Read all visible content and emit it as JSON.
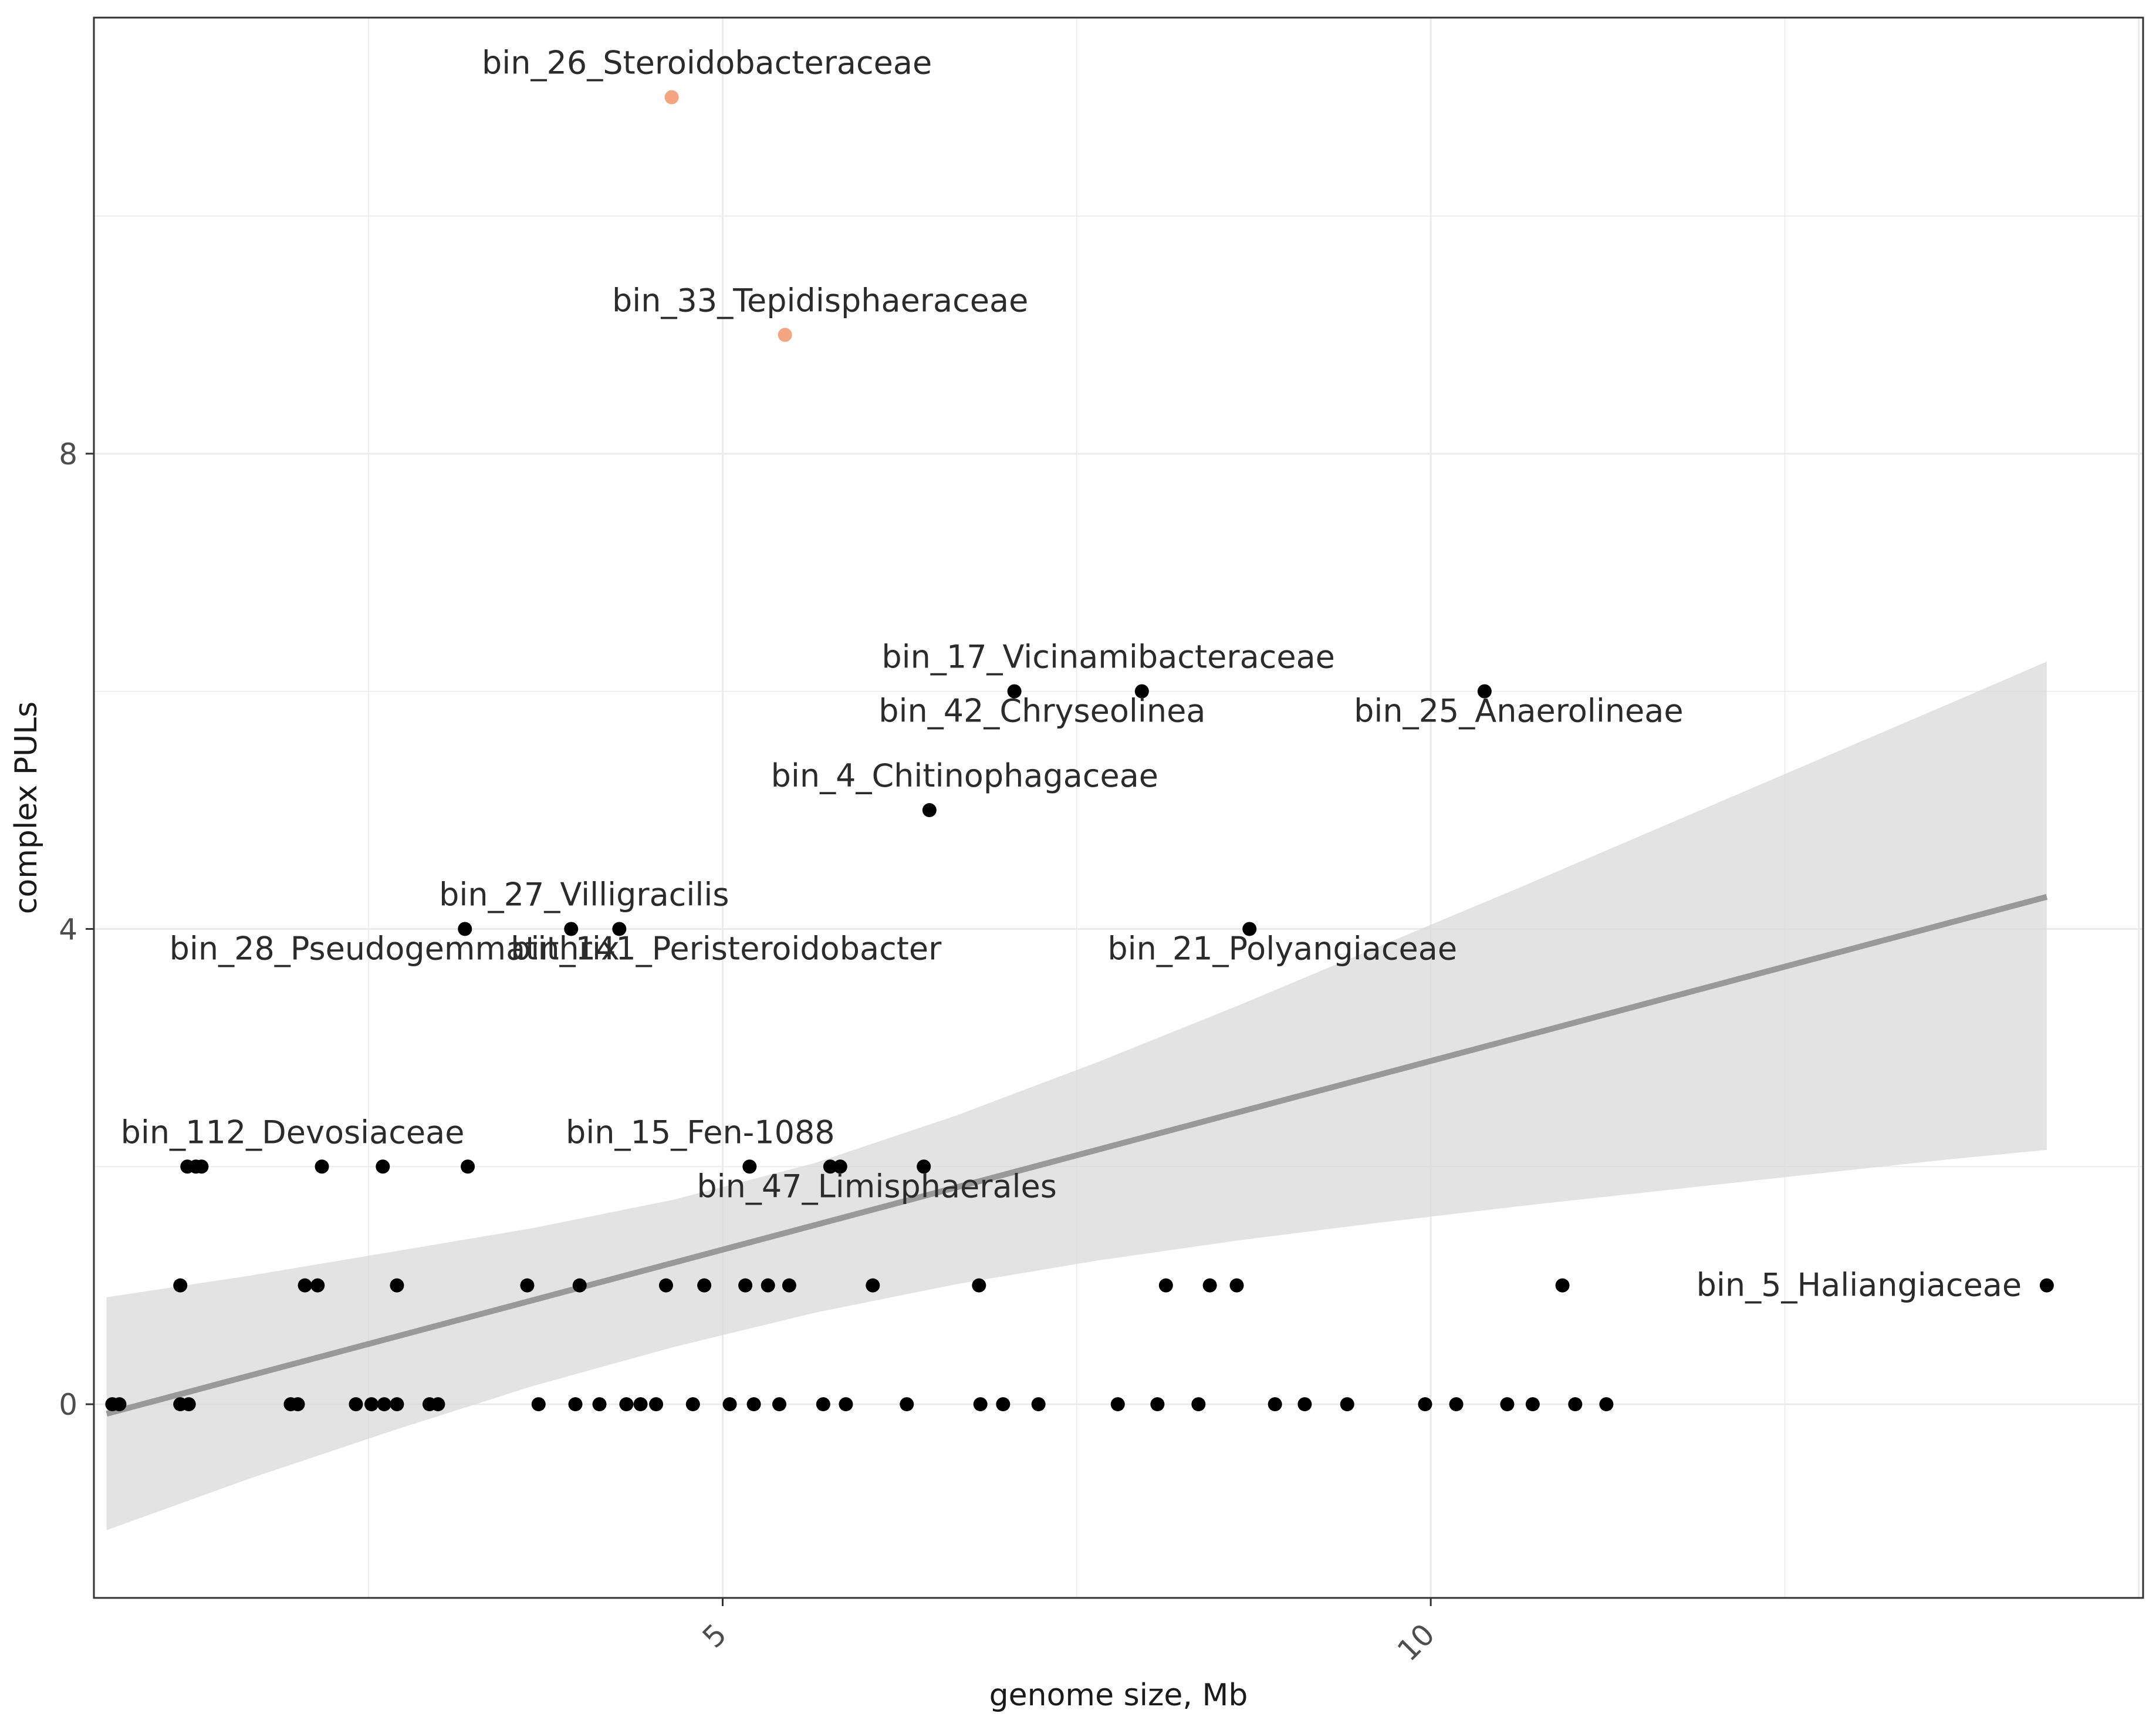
{
  "chart_data": {
    "type": "scatter",
    "title": "",
    "xlabel": "genome size, Mb",
    "ylabel": "complex PULs",
    "xlim": [
      0.56,
      15.03
    ],
    "ylim": [
      -1.63,
      11.67
    ],
    "x_ticks": [
      5,
      10
    ],
    "y_ticks": [
      0,
      4,
      8
    ],
    "grid": true,
    "legend": "none",
    "colors": {
      "point": "#000000",
      "highlight": "#F4A582",
      "fit_line": "#999999",
      "ribbon": "#d9d9d9",
      "grid": "#ebebeb",
      "border": "#333333"
    },
    "fit": {
      "x": [
        0.65,
        14.35
      ],
      "y": [
        -0.08,
        4.27
      ],
      "ribbon_x": [
        0.65,
        1.65,
        2.65,
        3.65,
        4.65,
        5.65,
        6.65,
        7.65,
        8.65,
        9.65,
        10.65,
        11.65,
        12.65,
        13.65,
        14.35
      ],
      "ribbon_lower": [
        -1.06,
        -0.63,
        -0.23,
        0.15,
        0.48,
        0.77,
        1.01,
        1.21,
        1.38,
        1.53,
        1.67,
        1.8,
        1.93,
        2.06,
        2.14
      ],
      "ribbon_upper": [
        0.9,
        1.08,
        1.28,
        1.48,
        1.72,
        2.03,
        2.43,
        2.88,
        3.36,
        3.86,
        4.36,
        4.87,
        5.38,
        5.89,
        6.25
      ]
    },
    "points": [
      {
        "x": 4.64,
        "y": 11.0,
        "label": "bin_26_Steroidobacteraceae",
        "highlight": true
      },
      {
        "x": 5.44,
        "y": 9.0,
        "label": "bin_33_Tepidisphaeraceae",
        "highlight": true
      },
      {
        "x": 7.06,
        "y": 6.0,
        "label": "bin_17_Vicinamibacteraceae"
      },
      {
        "x": 7.96,
        "y": 6.0,
        "label": "bin_42_Chryseolinea"
      },
      {
        "x": 10.38,
        "y": 6.0,
        "label": "bin_25_Anaerolineae"
      },
      {
        "x": 6.46,
        "y": 5.0,
        "label": "bin_4_Chitinophagaceae"
      },
      {
        "x": 4.27,
        "y": 4.0,
        "label": "bin_27_Villigracilis"
      },
      {
        "x": 3.18,
        "y": 4.0,
        "label": "bin_28_Pseudogemmatithrix"
      },
      {
        "x": 3.93,
        "y": 4.0,
        "label": "bin_141_Peristeroidobacter"
      },
      {
        "x": 8.72,
        "y": 4.0,
        "label": "bin_21_Polyangiaceae"
      },
      {
        "x": 2.17,
        "y": 2.0,
        "label": "bin_112_Devosiaceae"
      },
      {
        "x": 5.19,
        "y": 2.0,
        "label": "bin_15_Fen-1088"
      },
      {
        "x": 6.42,
        "y": 2.0,
        "label": "bin_47_Limisphaerales"
      },
      {
        "x": 14.35,
        "y": 1.0,
        "label": "bin_5_Haliangiaceae"
      },
      {
        "x": 1.22,
        "y": 2.0
      },
      {
        "x": 1.28,
        "y": 2.0
      },
      {
        "x": 1.32,
        "y": 2.0
      },
      {
        "x": 2.6,
        "y": 2.0
      },
      {
        "x": 3.2,
        "y": 2.0
      },
      {
        "x": 5.76,
        "y": 2.0
      },
      {
        "x": 5.83,
        "y": 2.0
      },
      {
        "x": 1.17,
        "y": 1.0
      },
      {
        "x": 2.05,
        "y": 1.0
      },
      {
        "x": 2.14,
        "y": 1.0
      },
      {
        "x": 2.7,
        "y": 1.0
      },
      {
        "x": 3.62,
        "y": 1.0
      },
      {
        "x": 3.99,
        "y": 1.0
      },
      {
        "x": 4.6,
        "y": 1.0
      },
      {
        "x": 4.87,
        "y": 1.0
      },
      {
        "x": 5.16,
        "y": 1.0
      },
      {
        "x": 5.32,
        "y": 1.0
      },
      {
        "x": 5.47,
        "y": 1.0
      },
      {
        "x": 6.06,
        "y": 1.0
      },
      {
        "x": 6.81,
        "y": 1.0
      },
      {
        "x": 8.13,
        "y": 1.0
      },
      {
        "x": 8.44,
        "y": 1.0
      },
      {
        "x": 8.63,
        "y": 1.0
      },
      {
        "x": 10.93,
        "y": 1.0
      },
      {
        "x": 0.69,
        "y": 0.0
      },
      {
        "x": 0.74,
        "y": 0.0
      },
      {
        "x": 2.0,
        "y": 0.0
      },
      {
        "x": 2.99,
        "y": 0.0
      },
      {
        "x": 1.17,
        "y": 0.0
      },
      {
        "x": 1.23,
        "y": 0.0
      },
      {
        "x": 1.95,
        "y": 0.0
      },
      {
        "x": 2.41,
        "y": 0.0
      },
      {
        "x": 2.52,
        "y": 0.0
      },
      {
        "x": 2.61,
        "y": 0.0
      },
      {
        "x": 2.7,
        "y": 0.0
      },
      {
        "x": 2.93,
        "y": 0.0
      },
      {
        "x": 3.7,
        "y": 0.0
      },
      {
        "x": 3.96,
        "y": 0.0
      },
      {
        "x": 4.13,
        "y": 0.0
      },
      {
        "x": 4.32,
        "y": 0.0
      },
      {
        "x": 4.42,
        "y": 0.0
      },
      {
        "x": 4.53,
        "y": 0.0
      },
      {
        "x": 4.79,
        "y": 0.0
      },
      {
        "x": 5.05,
        "y": 0.0
      },
      {
        "x": 5.22,
        "y": 0.0
      },
      {
        "x": 5.4,
        "y": 0.0
      },
      {
        "x": 5.71,
        "y": 0.0
      },
      {
        "x": 5.87,
        "y": 0.0
      },
      {
        "x": 6.3,
        "y": 0.0
      },
      {
        "x": 6.82,
        "y": 0.0
      },
      {
        "x": 7.23,
        "y": 0.0
      },
      {
        "x": 7.79,
        "y": 0.0
      },
      {
        "x": 8.07,
        "y": 0.0
      },
      {
        "x": 8.36,
        "y": 0.0
      },
      {
        "x": 8.9,
        "y": 0.0
      },
      {
        "x": 9.11,
        "y": 0.0
      },
      {
        "x": 9.41,
        "y": 0.0
      },
      {
        "x": 9.96,
        "y": 0.0
      },
      {
        "x": 10.18,
        "y": 0.0
      },
      {
        "x": 10.54,
        "y": 0.0
      },
      {
        "x": 10.72,
        "y": 0.0
      },
      {
        "x": 11.02,
        "y": 0.0
      },
      {
        "x": 11.24,
        "y": 0.0
      },
      {
        "x": 6.98,
        "y": 0.0
      }
    ]
  }
}
